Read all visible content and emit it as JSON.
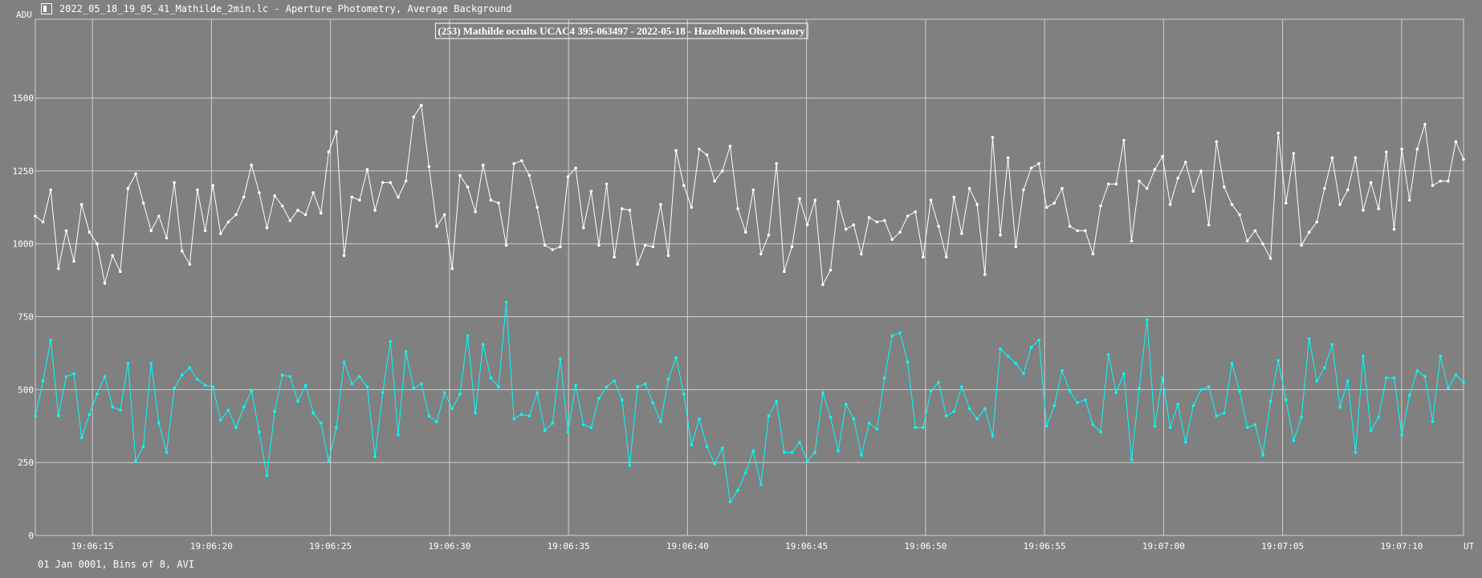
{
  "window": {
    "title": "2022_05_18_19_05_41_Mathilde_2min.lc - Aperture Photometry, Average Background",
    "icon": "lightcurve-app-icon"
  },
  "footer": {
    "text": "01 Jan 0001, Bins of 8, AVI"
  },
  "colors": {
    "background": "#808080",
    "grid": "#d0d0d0",
    "target": "#ffffff",
    "comparison": "#00ffff"
  },
  "chart_data": {
    "type": "line",
    "title": "(253) Mathilde occults UCAC4 395-063497 - 2022-05-18 - Hazelbrook Observatory",
    "xlabel": "UT",
    "ylabel": "ADU",
    "x_range": [
      "19:06:12.6",
      "19:07:12.6"
    ],
    "x_ticks": [
      "19:06:15",
      "19:06:20",
      "19:06:25",
      "19:06:30",
      "19:06:35",
      "19:06:40",
      "19:06:45",
      "19:06:50",
      "19:06:55",
      "19:07:00",
      "19:07:05",
      "19:07:10"
    ],
    "ylim": [
      0,
      1770
    ],
    "y_ticks": [
      0,
      250,
      500,
      750,
      1000,
      1250,
      1500
    ],
    "grid": true,
    "series": [
      {
        "color": "#ffffff",
        "values": [
          1095,
          1075,
          1185,
          915,
          1045,
          940,
          1135,
          1040,
          1000,
          865,
          960,
          905,
          1190,
          1240,
          1140,
          1045,
          1095,
          1020,
          1210,
          975,
          930,
          1185,
          1045,
          1200,
          1035,
          1075,
          1100,
          1160,
          1270,
          1175,
          1055,
          1165,
          1130,
          1080,
          1115,
          1100,
          1175,
          1105,
          1315,
          1385,
          960,
          1160,
          1150,
          1255,
          1115,
          1210,
          1210,
          1160,
          1215,
          1435,
          1475,
          1265,
          1060,
          1100,
          915,
          1235,
          1195,
          1110,
          1270,
          1150,
          1140,
          995,
          1275,
          1285,
          1235,
          1125,
          995,
          980,
          990,
          1230,
          1260,
          1055,
          1180,
          995,
          1205,
          955,
          1120,
          1115,
          930,
          995,
          990,
          1135,
          960,
          1320,
          1200,
          1125,
          1325,
          1305,
          1215,
          1250,
          1335,
          1120,
          1040,
          1185,
          965,
          1030,
          1275,
          905,
          990,
          1155,
          1065,
          1150,
          860,
          910,
          1145,
          1050,
          1065,
          965,
          1090,
          1075,
          1080,
          1015,
          1040,
          1095,
          1110,
          955,
          1150,
          1060,
          955,
          1160,
          1035,
          1190,
          1135,
          895,
          1365,
          1030,
          1295,
          990,
          1185,
          1260,
          1275,
          1125,
          1140,
          1190,
          1060,
          1045,
          1045,
          965,
          1130,
          1205,
          1205,
          1355,
          1010,
          1215,
          1190,
          1255,
          1300,
          1135,
          1225,
          1280,
          1180,
          1250,
          1065,
          1350,
          1195,
          1135,
          1100,
          1010,
          1045,
          1000,
          950,
          1380,
          1140,
          1310,
          995,
          1040,
          1075,
          1190,
          1295,
          1135,
          1185,
          1295,
          1115,
          1210,
          1120,
          1315,
          1050,
          1325,
          1150,
          1325,
          1410,
          1200,
          1215,
          1215,
          1350,
          1290
        ]
      },
      {
        "color": "#00ffff",
        "values": [
          410,
          530,
          670,
          410,
          545,
          555,
          335,
          415,
          485,
          545,
          440,
          430,
          590,
          255,
          305,
          590,
          385,
          285,
          505,
          550,
          575,
          535,
          515,
          510,
          395,
          430,
          370,
          440,
          495,
          355,
          205,
          425,
          550,
          545,
          460,
          515,
          420,
          385,
          255,
          370,
          595,
          520,
          545,
          510,
          270,
          490,
          665,
          345,
          630,
          505,
          520,
          410,
          390,
          490,
          435,
          485,
          685,
          420,
          655,
          540,
          510,
          800,
          400,
          415,
          410,
          490,
          360,
          385,
          605,
          355,
          515,
          380,
          370,
          470,
          510,
          530,
          465,
          240,
          510,
          520,
          455,
          390,
          535,
          610,
          485,
          310,
          400,
          305,
          245,
          300,
          115,
          155,
          215,
          290,
          175,
          410,
          460,
          285,
          285,
          320,
          255,
          285,
          490,
          405,
          290,
          450,
          400,
          275,
          385,
          365,
          540,
          685,
          695,
          595,
          370,
          370,
          495,
          525,
          410,
          425,
          510,
          435,
          400,
          435,
          340,
          640,
          615,
          590,
          555,
          645,
          670,
          375,
          445,
          565,
          495,
          455,
          465,
          380,
          355,
          620,
          490,
          555,
          260,
          505,
          740,
          375,
          540,
          370,
          450,
          320,
          445,
          500,
          510,
          410,
          420,
          590,
          495,
          370,
          380,
          275,
          460,
          600,
          465,
          325,
          405,
          675,
          530,
          575,
          655,
          440,
          530,
          285,
          615,
          360,
          405,
          540,
          540,
          345,
          480,
          565,
          545,
          390,
          615,
          505,
          550,
          525
        ]
      }
    ]
  }
}
